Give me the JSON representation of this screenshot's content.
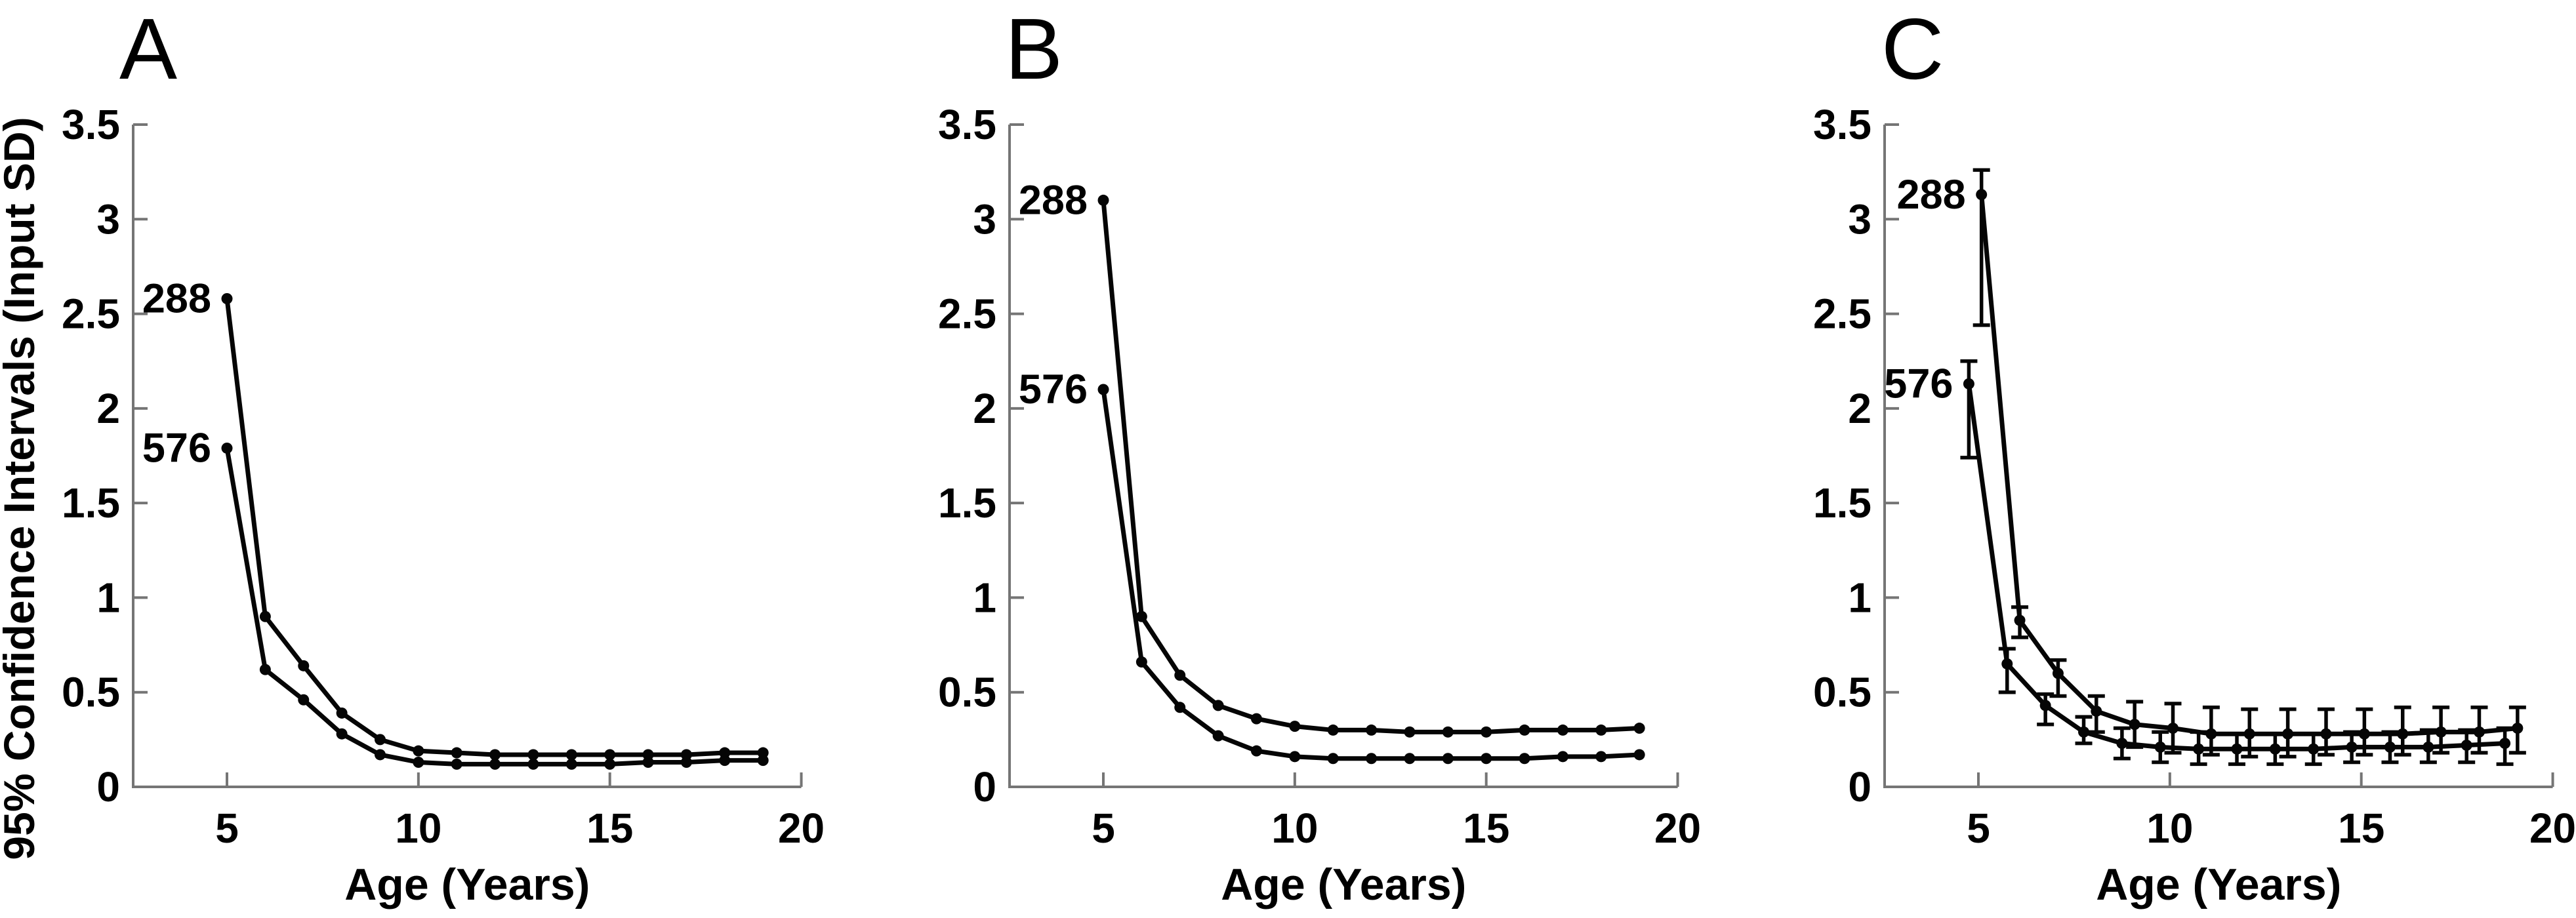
{
  "figure": {
    "background": "#ffffff",
    "axis_color": "#757575",
    "data_color": "#050505",
    "text_color": "#000000",
    "xlabel": "Age (Years)",
    "ylabel": "95% Confidence Intervals (Input SD)"
  },
  "chart_data": [
    {
      "id": "A",
      "type": "line",
      "title": "A",
      "xlabel": "Age (Years)",
      "ylabel": "95% Confidence Intervals (Input SD)",
      "xlim": [
        2.55,
        20
      ],
      "ylim": [
        0,
        3.5
      ],
      "xticks": [
        5,
        10,
        15,
        20
      ],
      "yticks": [
        0,
        0.5,
        1,
        1.5,
        2,
        2.5,
        3,
        3.5
      ],
      "grid": false,
      "legend_position": "inline-point-labels",
      "x": [
        5,
        6,
        7,
        8,
        9,
        10,
        11,
        12,
        13,
        14,
        15,
        16,
        17,
        18,
        19
      ],
      "series": [
        {
          "name": "288",
          "x_offset": 0,
          "values": [
            2.58,
            0.9,
            0.64,
            0.39,
            0.25,
            0.19,
            0.18,
            0.17,
            0.17,
            0.17,
            0.17,
            0.17,
            0.17,
            0.18,
            0.18
          ]
        },
        {
          "name": "576",
          "x_offset": 0,
          "values": [
            1.79,
            0.62,
            0.46,
            0.28,
            0.17,
            0.13,
            0.12,
            0.12,
            0.12,
            0.12,
            0.12,
            0.13,
            0.13,
            0.14,
            0.14
          ]
        }
      ]
    },
    {
      "id": "B",
      "type": "line",
      "title": "B",
      "xlabel": "Age (Years)",
      "ylabel": "",
      "xlim": [
        2.55,
        20
      ],
      "ylim": [
        0,
        3.5
      ],
      "xticks": [
        5,
        10,
        15,
        20
      ],
      "yticks": [
        0,
        0.5,
        1,
        1.5,
        2,
        2.5,
        3,
        3.5
      ],
      "grid": false,
      "legend_position": "inline-point-labels",
      "x": [
        5,
        6,
        7,
        8,
        9,
        10,
        11,
        12,
        13,
        14,
        15,
        16,
        17,
        18,
        19
      ],
      "series": [
        {
          "name": "288",
          "x_offset": 0,
          "values": [
            3.1,
            0.9,
            0.59,
            0.43,
            0.36,
            0.32,
            0.3,
            0.3,
            0.29,
            0.29,
            0.29,
            0.3,
            0.3,
            0.3,
            0.31
          ]
        },
        {
          "name": "576",
          "x_offset": 0,
          "values": [
            2.1,
            0.66,
            0.42,
            0.27,
            0.19,
            0.16,
            0.15,
            0.15,
            0.15,
            0.15,
            0.15,
            0.15,
            0.16,
            0.16,
            0.17
          ]
        }
      ]
    },
    {
      "id": "C",
      "type": "line",
      "title": "C",
      "xlabel": "Age (Years)",
      "ylabel": "",
      "xlim": [
        2.55,
        20
      ],
      "ylim": [
        0,
        3.5
      ],
      "xticks": [
        5,
        10,
        15,
        20
      ],
      "yticks": [
        0,
        0.5,
        1,
        1.5,
        2,
        2.5,
        3,
        3.5
      ],
      "grid": false,
      "legend_position": "inline-point-labels",
      "x": [
        5,
        6,
        7,
        8,
        9,
        10,
        11,
        12,
        13,
        14,
        15,
        16,
        17,
        18,
        19
      ],
      "series": [
        {
          "name": "288",
          "x_offset": 0.08,
          "values": [
            3.13,
            0.88,
            0.6,
            0.4,
            0.33,
            0.31,
            0.28,
            0.28,
            0.28,
            0.28,
            0.28,
            0.28,
            0.29,
            0.29,
            0.31
          ],
          "err_low": [
            2.44,
            0.79,
            0.48,
            0.29,
            0.21,
            0.18,
            0.17,
            0.16,
            0.16,
            0.17,
            0.17,
            0.17,
            0.18,
            0.18,
            0.18
          ],
          "err_high": [
            3.26,
            0.95,
            0.67,
            0.48,
            0.45,
            0.44,
            0.42,
            0.41,
            0.41,
            0.41,
            0.41,
            0.42,
            0.42,
            0.42,
            0.42
          ]
        },
        {
          "name": "576",
          "x_offset": -0.25,
          "values": [
            2.13,
            0.65,
            0.43,
            0.29,
            0.23,
            0.21,
            0.2,
            0.2,
            0.2,
            0.2,
            0.21,
            0.21,
            0.21,
            0.22,
            0.23
          ],
          "err_low": [
            1.74,
            0.5,
            0.33,
            0.23,
            0.15,
            0.13,
            0.12,
            0.12,
            0.12,
            0.12,
            0.13,
            0.13,
            0.13,
            0.13,
            0.12
          ],
          "err_high": [
            2.25,
            0.73,
            0.49,
            0.37,
            0.31,
            0.29,
            0.29,
            0.28,
            0.28,
            0.28,
            0.29,
            0.29,
            0.3,
            0.3,
            0.31
          ]
        }
      ]
    }
  ]
}
